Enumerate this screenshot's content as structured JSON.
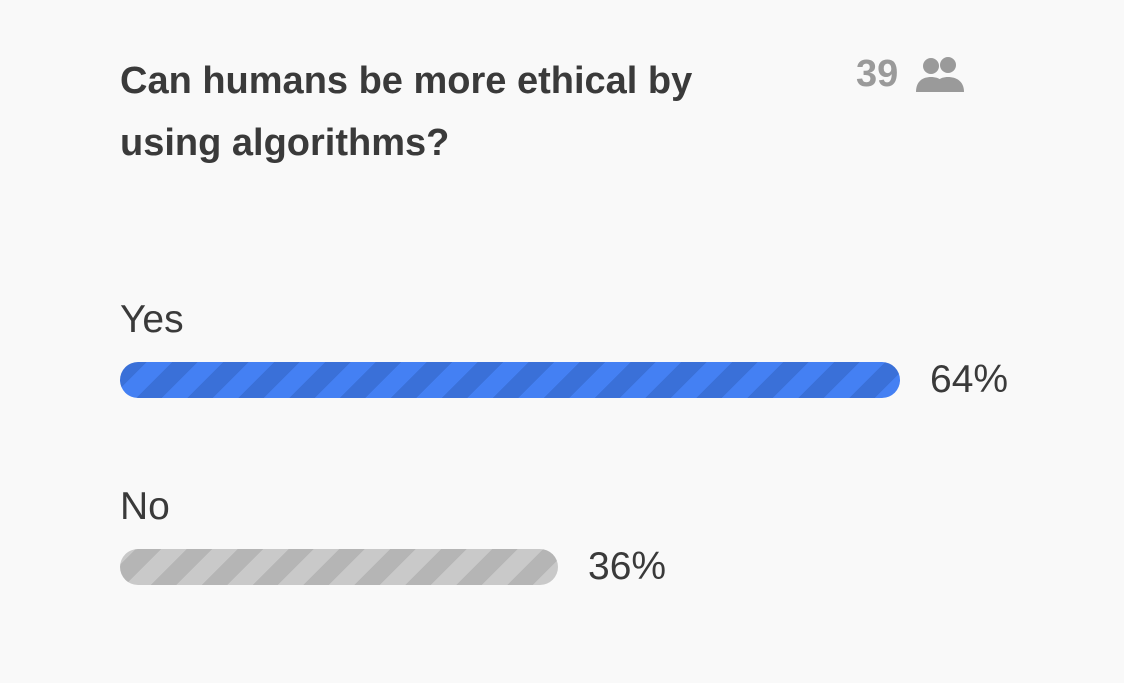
{
  "poll": {
    "question": "Can humans be more ethical by using algorithms?",
    "voter_count": "39",
    "voter_icon": "people-icon",
    "options": [
      {
        "label": "Yes",
        "percent_text": "64%",
        "fraction": 0.64,
        "bar_color": "#4480f3"
      },
      {
        "label": "No",
        "percent_text": "36%",
        "fraction": 0.36,
        "bar_color": "#c9c9c9"
      }
    ]
  }
}
